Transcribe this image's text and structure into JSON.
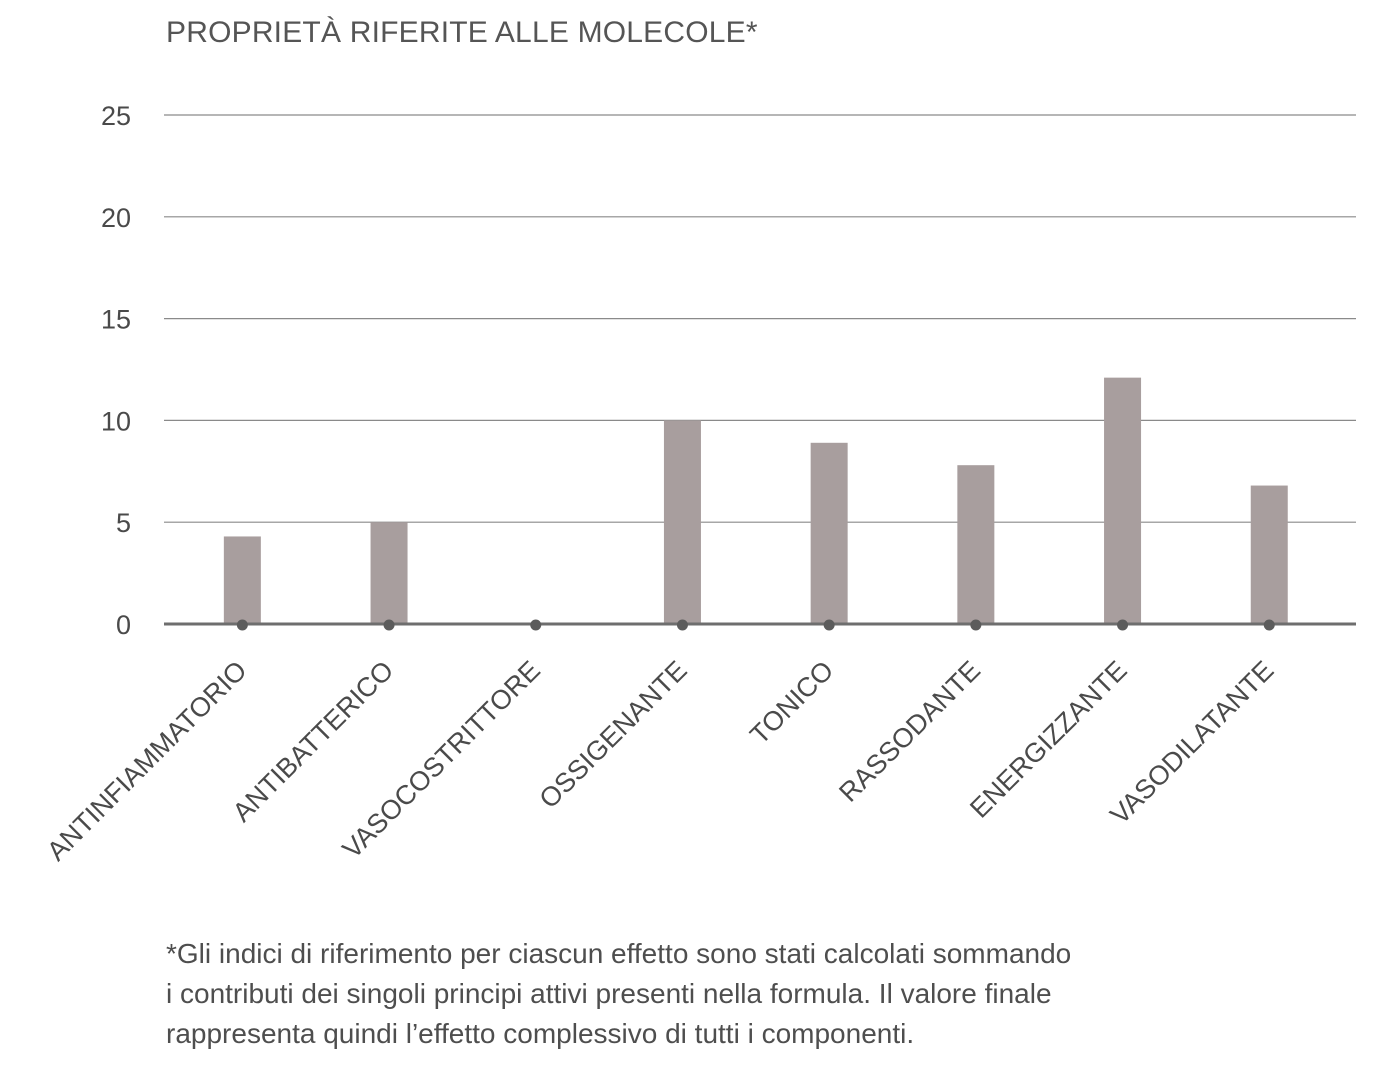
{
  "chart_data": {
    "type": "bar",
    "title": "PROPRIETÀ RIFERITE ALLE MOLECOLE*",
    "categories": [
      "ANTINFIAMMATORIO",
      "ANTIBATTERICO",
      "VASOCOSTRITTORE",
      "OSSIGENANTE",
      "TONICO",
      "RASSODANTE",
      "ENERGIZZANTE",
      "VASODILATANTE"
    ],
    "values": [
      4.3,
      5.0,
      0,
      10.0,
      8.9,
      7.8,
      12.1,
      6.8
    ],
    "yticks": [
      "0",
      "5",
      "10",
      "15",
      "20",
      "25"
    ],
    "ylim": [
      0,
      25
    ],
    "grid": true,
    "xlabel": "",
    "ylabel": "",
    "colors": {
      "bar": "#a89e9e",
      "grid": "#8a8a8a",
      "baseline": "#6e6e6e",
      "marker": "#5c5c5c"
    }
  },
  "footnote": {
    "lines": [
      "*Gli indici di riferimento per ciascun effetto sono stati calcolati sommando",
      "i contributi dei singoli principi attivi presenti nella formula. Il valore finale",
      "rappresenta quindi l’effetto complessivo di tutti i componenti."
    ]
  }
}
